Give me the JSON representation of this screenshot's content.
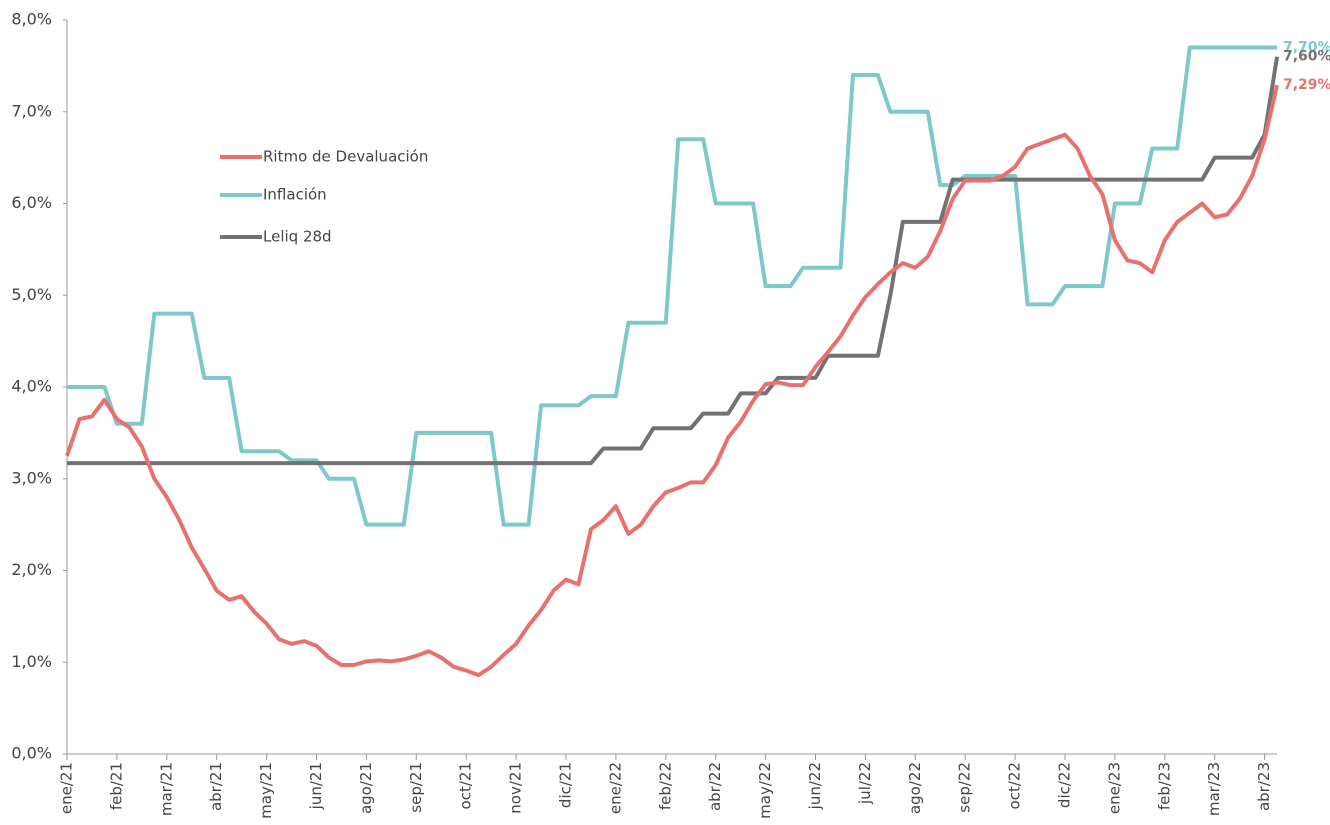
{
  "chart_data": {
    "type": "line",
    "categories": [
      "ene/21",
      null,
      null,
      null,
      "feb/21",
      null,
      null,
      null,
      "mar/21",
      null,
      null,
      null,
      "abr/21",
      null,
      null,
      null,
      "may/21",
      null,
      null,
      null,
      "jun/21",
      null,
      null,
      null,
      "ago/21",
      null,
      null,
      null,
      "sep/21",
      null,
      null,
      null,
      "oct/21",
      null,
      null,
      null,
      "nov/21",
      null,
      null,
      null,
      "dic/21",
      null,
      null,
      null,
      "ene/22",
      null,
      null,
      null,
      "feb/22",
      null,
      null,
      null,
      "abr/22",
      null,
      null,
      null,
      "may/22",
      null,
      null,
      null,
      "jun/22",
      null,
      null,
      null,
      "jul/22",
      null,
      null,
      null,
      "ago/22",
      null,
      null,
      null,
      "sep/22",
      null,
      null,
      null,
      "oct/22",
      null,
      null,
      null,
      "dic/22",
      null,
      null,
      null,
      "ene/23",
      null,
      null,
      null,
      "feb/23",
      null,
      null,
      null,
      "mar/23",
      null,
      null,
      null,
      "abr/23",
      null
    ],
    "ylim": [
      0,
      8
    ],
    "yticks": [
      {
        "value": 0,
        "label": "0,0%"
      },
      {
        "value": 1,
        "label": "1,0%"
      },
      {
        "value": 2,
        "label": "2,0%"
      },
      {
        "value": 3,
        "label": "3,0%"
      },
      {
        "value": 4,
        "label": "4,0%"
      },
      {
        "value": 5,
        "label": "5,0%"
      },
      {
        "value": 6,
        "label": "6,0%"
      },
      {
        "value": 7,
        "label": "7,0%"
      },
      {
        "value": 8,
        "label": "8,0%"
      }
    ],
    "grid": false,
    "series": [
      {
        "name": "Ritmo de Devaluación",
        "color": "#e8716f",
        "end_label": "7,29%",
        "values": [
          3.25,
          3.65,
          3.68,
          3.86,
          3.65,
          3.56,
          3.35,
          3.0,
          2.8,
          2.55,
          2.25,
          2.02,
          1.78,
          1.68,
          1.72,
          1.55,
          1.42,
          1.25,
          1.2,
          1.23,
          1.18,
          1.05,
          0.97,
          0.97,
          1.01,
          1.02,
          1.01,
          1.03,
          1.07,
          1.12,
          1.05,
          0.95,
          0.91,
          0.86,
          0.95,
          1.08,
          1.2,
          1.4,
          1.57,
          1.78,
          1.9,
          1.85,
          2.45,
          2.55,
          2.7,
          2.4,
          2.5,
          2.7,
          2.85,
          2.9,
          2.96,
          2.96,
          3.15,
          3.45,
          3.62,
          3.85,
          4.03,
          4.05,
          4.02,
          4.02,
          4.22,
          4.38,
          4.55,
          4.78,
          4.98,
          5.12,
          5.25,
          5.35,
          5.3,
          5.42,
          5.7,
          6.05,
          6.25,
          6.25,
          6.25,
          6.3,
          6.4,
          6.6,
          6.65,
          6.7,
          6.75,
          6.6,
          6.3,
          6.1,
          5.6,
          5.38,
          5.35,
          5.25,
          5.6,
          5.8,
          5.9,
          6.0,
          5.85,
          5.88,
          6.05,
          6.3,
          6.7,
          7.29
        ]
      },
      {
        "name": "Inflación",
        "color": "#7cc8ca",
        "end_label": "7,70%",
        "values": [
          4.0,
          4.0,
          4.0,
          4.0,
          3.6,
          3.6,
          3.6,
          4.8,
          4.8,
          4.8,
          4.8,
          4.1,
          4.1,
          4.1,
          3.3,
          3.3,
          3.3,
          3.3,
          3.2,
          3.2,
          3.2,
          3.0,
          3.0,
          3.0,
          2.5,
          2.5,
          2.5,
          2.5,
          3.5,
          3.5,
          3.5,
          3.5,
          3.5,
          3.5,
          3.5,
          2.5,
          2.5,
          2.5,
          3.8,
          3.8,
          3.8,
          3.8,
          3.9,
          3.9,
          3.9,
          4.7,
          4.7,
          4.7,
          4.7,
          6.7,
          6.7,
          6.7,
          6.0,
          6.0,
          6.0,
          6.0,
          5.1,
          5.1,
          5.1,
          5.3,
          5.3,
          5.3,
          5.3,
          7.4,
          7.4,
          7.4,
          7.0,
          7.0,
          7.0,
          7.0,
          6.2,
          6.2,
          6.3,
          6.3,
          6.3,
          6.3,
          6.3,
          4.9,
          4.9,
          4.9,
          5.1,
          5.1,
          5.1,
          5.1,
          6.0,
          6.0,
          6.0,
          6.6,
          6.6,
          6.6,
          7.7,
          7.7,
          7.7,
          7.7,
          7.7,
          7.7,
          7.7,
          7.7
        ]
      },
      {
        "name": "Leliq 28d",
        "color": "#727272",
        "end_label": "7,60%",
        "values": [
          3.17,
          3.17,
          3.17,
          3.17,
          3.17,
          3.17,
          3.17,
          3.17,
          3.17,
          3.17,
          3.17,
          3.17,
          3.17,
          3.17,
          3.17,
          3.17,
          3.17,
          3.17,
          3.17,
          3.17,
          3.17,
          3.17,
          3.17,
          3.17,
          3.17,
          3.17,
          3.17,
          3.17,
          3.17,
          3.17,
          3.17,
          3.17,
          3.17,
          3.17,
          3.17,
          3.17,
          3.17,
          3.17,
          3.17,
          3.17,
          3.17,
          3.17,
          3.17,
          3.33,
          3.33,
          3.33,
          3.33,
          3.55,
          3.55,
          3.55,
          3.55,
          3.71,
          3.71,
          3.71,
          3.93,
          3.93,
          3.93,
          4.1,
          4.1,
          4.1,
          4.1,
          4.34,
          4.34,
          4.34,
          4.34,
          4.34,
          5.0,
          5.8,
          5.8,
          5.8,
          5.8,
          6.26,
          6.26,
          6.26,
          6.26,
          6.26,
          6.26,
          6.26,
          6.26,
          6.26,
          6.26,
          6.26,
          6.26,
          6.26,
          6.26,
          6.26,
          6.26,
          6.26,
          6.26,
          6.26,
          6.26,
          6.26,
          6.5,
          6.5,
          6.5,
          6.5,
          6.75,
          7.6
        ]
      }
    ]
  }
}
